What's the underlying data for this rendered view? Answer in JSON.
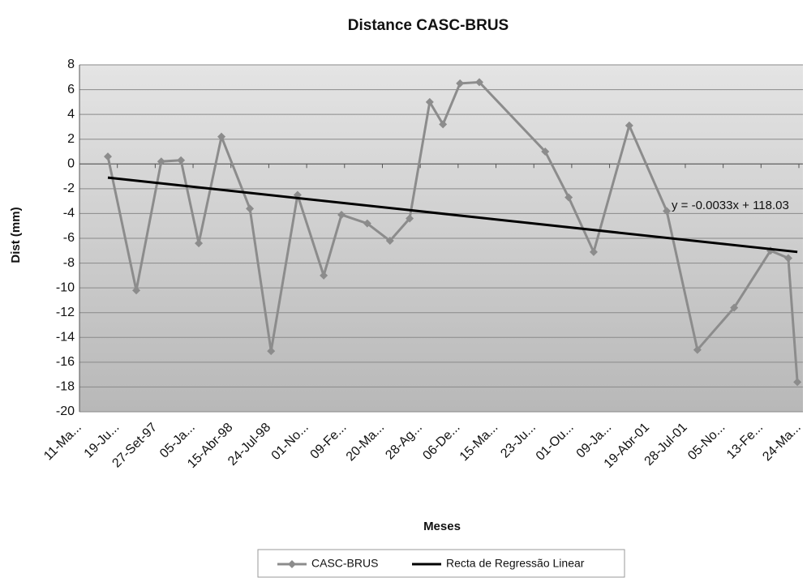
{
  "chart_data": {
    "type": "line",
    "title": "Distance CASC-BRUS",
    "y_label": "Dist (mm)",
    "x_label": "Meses",
    "annotation": "y = -0.0033x + 118.03",
    "xlim": [
      35500,
      37400
    ],
    "xticks": [
      {
        "value": 35500,
        "label": "11-Ma..."
      },
      {
        "value": 35600,
        "label": "19-Ju..."
      },
      {
        "value": 35700,
        "label": "27-Set-97"
      },
      {
        "value": 35800,
        "label": "05-Ja..."
      },
      {
        "value": 35900,
        "label": "15-Abr-98"
      },
      {
        "value": 36000,
        "label": "24-Jul-98"
      },
      {
        "value": 36100,
        "label": "01-No..."
      },
      {
        "value": 36200,
        "label": "09-Fe..."
      },
      {
        "value": 36300,
        "label": "20-Ma..."
      },
      {
        "value": 36400,
        "label": "28-Ag..."
      },
      {
        "value": 36500,
        "label": "06-De..."
      },
      {
        "value": 36600,
        "label": "15-Ma..."
      },
      {
        "value": 36700,
        "label": "23-Ju..."
      },
      {
        "value": 36800,
        "label": "01-Ou..."
      },
      {
        "value": 36900,
        "label": "09-Ja..."
      },
      {
        "value": 37000,
        "label": "19-Abr-01"
      },
      {
        "value": 37100,
        "label": "28-Jul-01"
      },
      {
        "value": 37200,
        "label": "05-No..."
      },
      {
        "value": 37300,
        "label": "13-Fe..."
      },
      {
        "value": 37400,
        "label": "24-Ma..."
      }
    ],
    "ylim": [
      -20,
      8
    ],
    "yticks": [
      8,
      6,
      4,
      2,
      0,
      -2,
      -4,
      -6,
      -8,
      -10,
      -12,
      -14,
      -16,
      -18,
      -20
    ],
    "grid": true,
    "legend": "bottom",
    "series": [
      {
        "name": "CASC-BRUS",
        "color": "#8c8c8c",
        "marker": "diamond",
        "x": [
          35575,
          35650,
          35716,
          35768,
          35815,
          35875,
          35950,
          36006,
          36076,
          36145,
          36192,
          36260,
          36320,
          36372,
          36425,
          36460,
          36505,
          36556,
          36730,
          36792,
          36858,
          36952,
          37051,
          37132,
          37229,
          37325,
          37372,
          37396
        ],
        "values": [
          0.6,
          -10.2,
          0.2,
          0.3,
          -6.4,
          2.2,
          -3.6,
          -15.1,
          -2.5,
          -9.0,
          -4.1,
          -4.8,
          -6.2,
          -4.4,
          5.0,
          3.2,
          6.5,
          6.6,
          1.0,
          -2.7,
          -7.1,
          3.1,
          -3.8,
          -15.0,
          -11.6,
          -7.0,
          -7.6,
          -17.6
        ]
      },
      {
        "name": "Recta de Regressão Linear",
        "color": "#000000",
        "marker": "none",
        "x": [
          35575,
          37396
        ],
        "values": [
          -1.1,
          -7.1
        ]
      }
    ]
  }
}
